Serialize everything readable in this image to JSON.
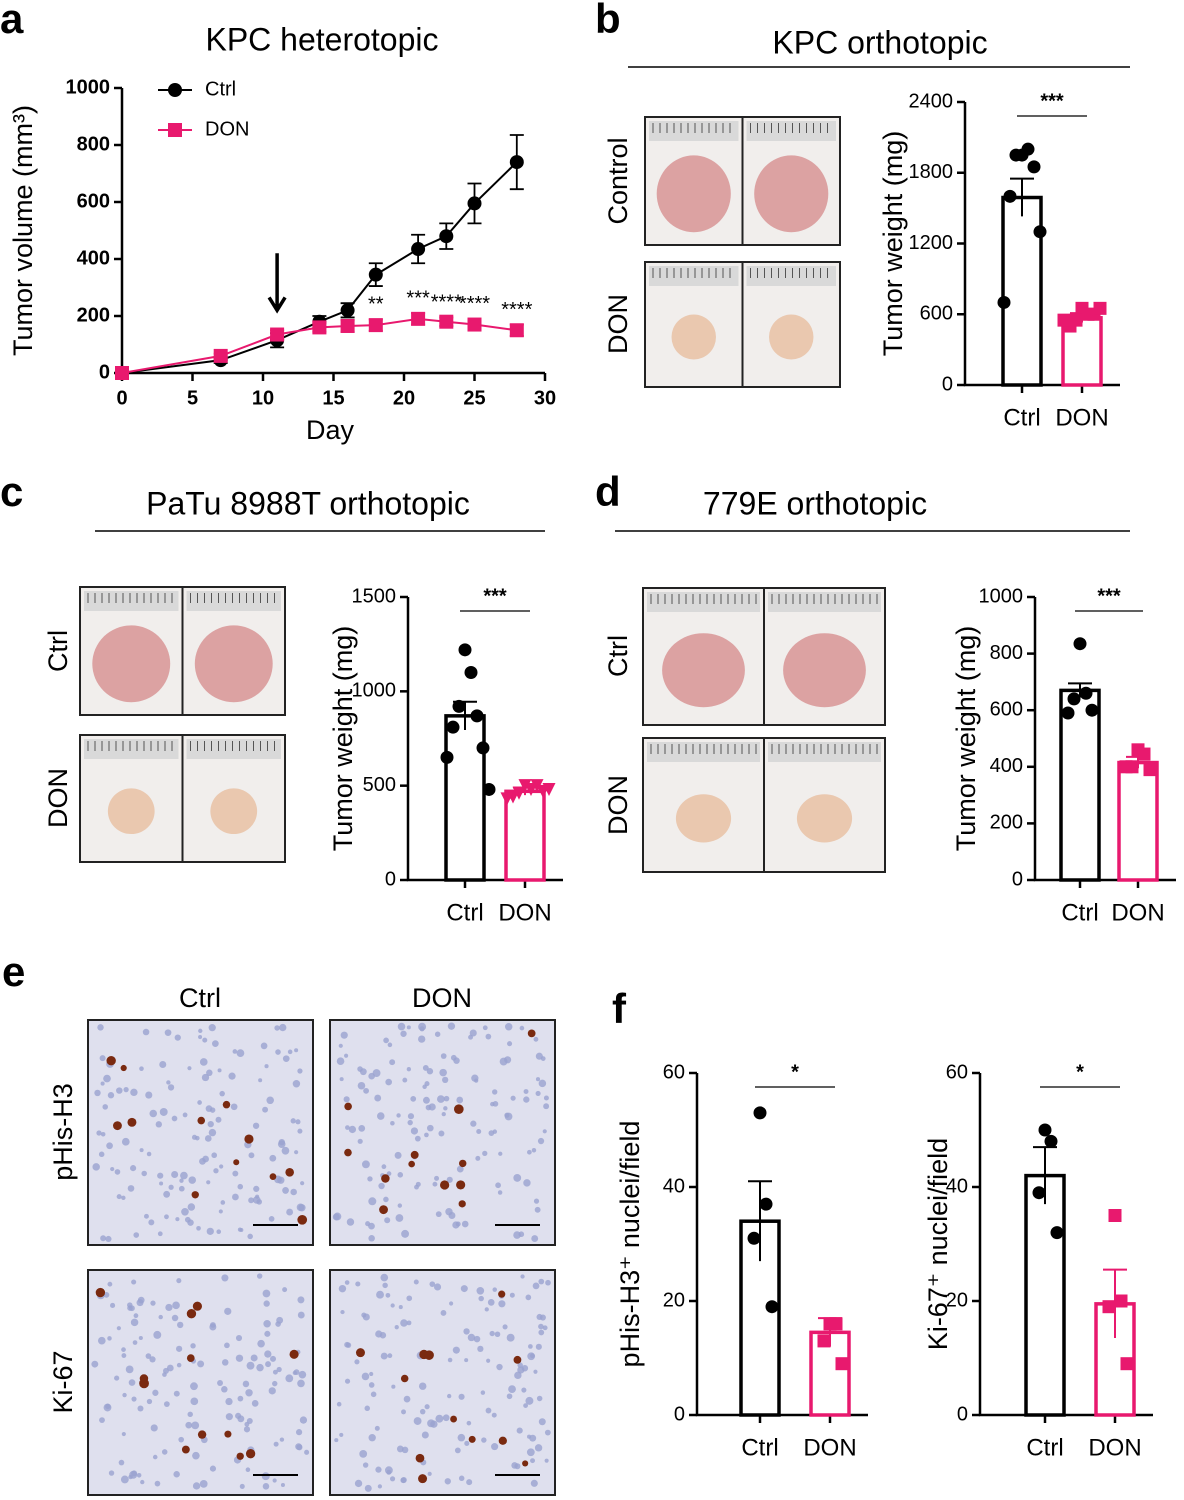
{
  "panel_labels": [
    "a",
    "b",
    "c",
    "d",
    "e",
    "f"
  ],
  "photos": {
    "b": [
      "Control",
      "DON"
    ],
    "c": [
      "Ctrl",
      "DON"
    ],
    "d": [
      "Ctrl",
      "DON"
    ],
    "e": {
      "columns": [
        "Ctrl",
        "DON"
      ],
      "rows": [
        "pHis-H3",
        "Ki-67"
      ]
    }
  },
  "chart_data": [
    {
      "type": "line",
      "title": "KPC heterotopic",
      "x_label": "Day",
      "y_label": "Tumor volume (mm³)",
      "xlim": [
        0,
        30
      ],
      "xticks": [
        0,
        5,
        10,
        15,
        20,
        25,
        30
      ],
      "ylim": [
        0,
        1000
      ],
      "yticks": [
        0,
        200,
        400,
        600,
        800,
        1000
      ],
      "x": [
        0,
        7,
        11,
        14,
        16,
        18,
        21,
        23,
        25,
        28
      ],
      "series": [
        {
          "name": "Ctrl",
          "color": "#000000",
          "marker": "circle",
          "values": [
            0,
            45,
            115,
            180,
            220,
            345,
            435,
            480,
            595,
            740
          ],
          "errors": [
            0,
            10,
            25,
            20,
            25,
            40,
            50,
            45,
            70,
            95
          ]
        },
        {
          "name": "DON",
          "color": "#e8196e",
          "marker": "square",
          "values": [
            0,
            60,
            135,
            160,
            165,
            168,
            190,
            180,
            170,
            150
          ],
          "errors": [
            0,
            8,
            15,
            15,
            20,
            20,
            20,
            15,
            20,
            20
          ]
        }
      ],
      "arrow_x": 11,
      "annotations": [
        {
          "x": 18,
          "text": "**"
        },
        {
          "x": 21,
          "text": "***"
        },
        {
          "x": 23,
          "text": "****"
        },
        {
          "x": 25,
          "text": "****"
        },
        {
          "x": 28,
          "text": "****"
        }
      ]
    },
    {
      "type": "bar",
      "title": "KPC orthotopic",
      "y_label": "Tumor weight (mg)",
      "categories": [
        "Ctrl",
        "DON"
      ],
      "values": [
        1590,
        570
      ],
      "errors": [
        160,
        40
      ],
      "colors": [
        "#000000",
        "#e8196e"
      ],
      "markers": [
        "circle",
        "square"
      ],
      "points": [
        [
          1950,
          2000,
          1950,
          1850,
          1600,
          1300,
          700
        ],
        [
          650,
          600,
          550,
          600,
          500,
          650,
          550
        ]
      ],
      "ylim": [
        0,
        2400
      ],
      "yticks": [
        0,
        600,
        1200,
        1800,
        2400
      ],
      "significance": "***"
    },
    {
      "type": "bar",
      "title": "PaTu 8988T orthotopic",
      "y_label": "Tumor weight (mg)",
      "categories": [
        "Ctrl",
        "DON"
      ],
      "values": [
        870,
        470
      ],
      "errors": [
        75,
        20
      ],
      "colors": [
        "#000000",
        "#e8196e"
      ],
      "markers": [
        "circle",
        "triangle"
      ],
      "points": [
        [
          1220,
          1100,
          920,
          870,
          810,
          700,
          650,
          480
        ],
        [
          500,
          480,
          460,
          500,
          440,
          470,
          430,
          480
        ]
      ],
      "ylim": [
        0,
        1500
      ],
      "yticks": [
        0,
        500,
        1000,
        1500
      ],
      "significance": "***"
    },
    {
      "type": "bar",
      "title": "779E orthotopic",
      "y_label": "Tumor weight (mg)",
      "categories": [
        "Ctrl",
        "DON"
      ],
      "values": [
        670,
        415
      ],
      "errors": [
        25,
        20
      ],
      "colors": [
        "#000000",
        "#e8196e"
      ],
      "markers": [
        "circle",
        "square"
      ],
      "points": [
        [
          835,
          660,
          640,
          600,
          590
        ],
        [
          460,
          445,
          400,
          390,
          400
        ]
      ],
      "ylim": [
        0,
        1000
      ],
      "yticks": [
        0,
        200,
        400,
        600,
        800,
        1000
      ],
      "significance": "***"
    },
    {
      "type": "bar",
      "y_label": "pHis-H3⁺ nuclei/field",
      "categories": [
        "Ctrl",
        "DON"
      ],
      "values": [
        34,
        14.5
      ],
      "errors": [
        7,
        2.5
      ],
      "colors": [
        "#000000",
        "#e8196e"
      ],
      "markers": [
        "circle",
        "square"
      ],
      "points": [
        [
          53,
          37,
          31,
          19
        ],
        [
          16,
          16,
          13,
          9
        ]
      ],
      "ylim": [
        0,
        60
      ],
      "yticks": [
        0,
        20,
        40,
        60
      ],
      "significance": "*"
    },
    {
      "type": "bar",
      "y_label": "Ki-67⁺ nuclei/field",
      "categories": [
        "Ctrl",
        "DON"
      ],
      "values": [
        42,
        19.5
      ],
      "errors": [
        5,
        6
      ],
      "colors": [
        "#000000",
        "#e8196e"
      ],
      "markers": [
        "circle",
        "square"
      ],
      "points": [
        [
          50,
          48,
          39,
          32
        ],
        [
          35,
          20,
          19,
          9
        ]
      ],
      "ylim": [
        0,
        60
      ],
      "yticks": [
        0,
        20,
        40,
        60
      ],
      "significance": "*"
    }
  ]
}
